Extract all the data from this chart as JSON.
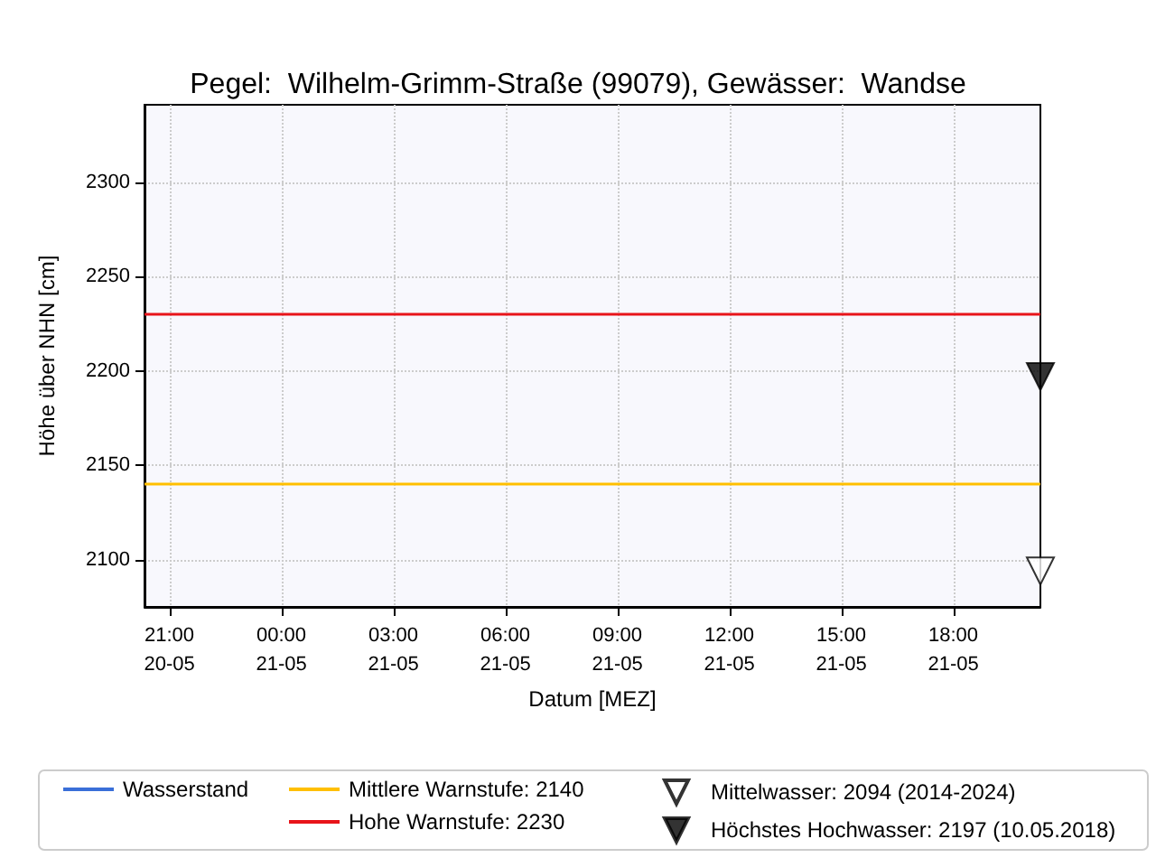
{
  "chart_data": {
    "type": "line",
    "title": "Pegel:  Wilhelm-Grimm-Straße (99079), Gewässer:  Wandse",
    "xlabel": "Datum [MEZ]",
    "ylabel": "Höhe über NHN [cm]",
    "xlim": [
      "--05-20T20:20",
      "--05-21T20:20"
    ],
    "xticks": [
      {
        "value": "--05-20T21:00",
        "label": "21:00\n20-05"
      },
      {
        "value": "--05-21T00:00",
        "label": "00:00\n21-05"
      },
      {
        "value": "--05-21T03:00",
        "label": "03:00\n21-05"
      },
      {
        "value": "--05-21T06:00",
        "label": "06:00\n21-05"
      },
      {
        "value": "--05-21T09:00",
        "label": "09:00\n21-05"
      },
      {
        "value": "--05-21T12:00",
        "label": "12:00\n21-05"
      },
      {
        "value": "--05-21T15:00",
        "label": "15:00\n21-05"
      },
      {
        "value": "--05-21T18:00",
        "label": "18:00\n21-05"
      }
    ],
    "ylim": [
      2075,
      2341
    ],
    "yticks": [
      2100,
      2150,
      2200,
      2250,
      2300
    ],
    "grid": true,
    "legend": "bottom",
    "series": [
      {
        "name": "Wasserstand",
        "color": "#3a6fd8"
      },
      {
        "name": "Mittelwasser: 2094 (2014-2024)",
        "type": "scatter",
        "marker": "triangle",
        "color": "#ffffff",
        "x": [
          "--05-21T20:20"
        ],
        "values": [
          2094
        ]
      },
      {
        "name": "Höchstes Hochwasser: 2197 (10.05.2018)",
        "type": "scatter",
        "marker": "triangle",
        "color": "#000000",
        "x": [
          "--05-21T20:20"
        ],
        "values": [
          2197
        ]
      }
    ],
    "ref_lines": [
      {
        "axis": "y",
        "value": 2140,
        "label": "Mittlere Warnstufe: 2140",
        "color": "#ffbf00"
      },
      {
        "axis": "y",
        "value": 2230,
        "label": "Hohe Warnstufe: 2230",
        "color": "#e8141a"
      }
    ]
  }
}
